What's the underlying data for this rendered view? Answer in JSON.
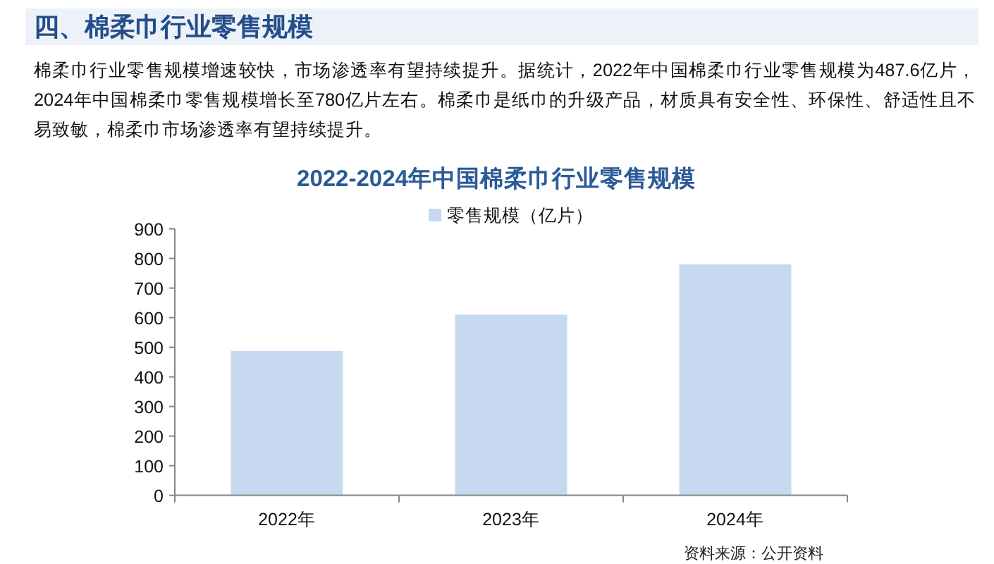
{
  "chart_data": {
    "type": "bar",
    "title": "2022-2024年中国棉柔巾行业零售规模",
    "categories": [
      "2022年",
      "2023年",
      "2024年"
    ],
    "series": [
      {
        "name": "零售规模（亿片）",
        "color": "#c6d9f1",
        "values": [
          487.6,
          610,
          780
        ]
      }
    ],
    "ylim": [
      0,
      900
    ],
    "yticks": [
      0,
      100,
      200,
      300,
      400,
      500,
      600,
      700,
      800,
      900
    ],
    "grid": false,
    "legend": "top",
    "annotations": [
      "四、棉柔巾行业零售规模",
      "棉柔巾行业零售规模增速较快，市场渗透率有望持续提升。据统计，2022年中国棉柔巾行业零售规模为487.6亿片，2024年中国棉柔巾零售规模增长至780亿片左右。棉柔巾是纸巾的升级产品，材质具有安全性、环保性、舒适性且不易致敏，棉柔巾市场渗透率有望持续提升。",
      "资料来源：公开资料"
    ]
  }
}
